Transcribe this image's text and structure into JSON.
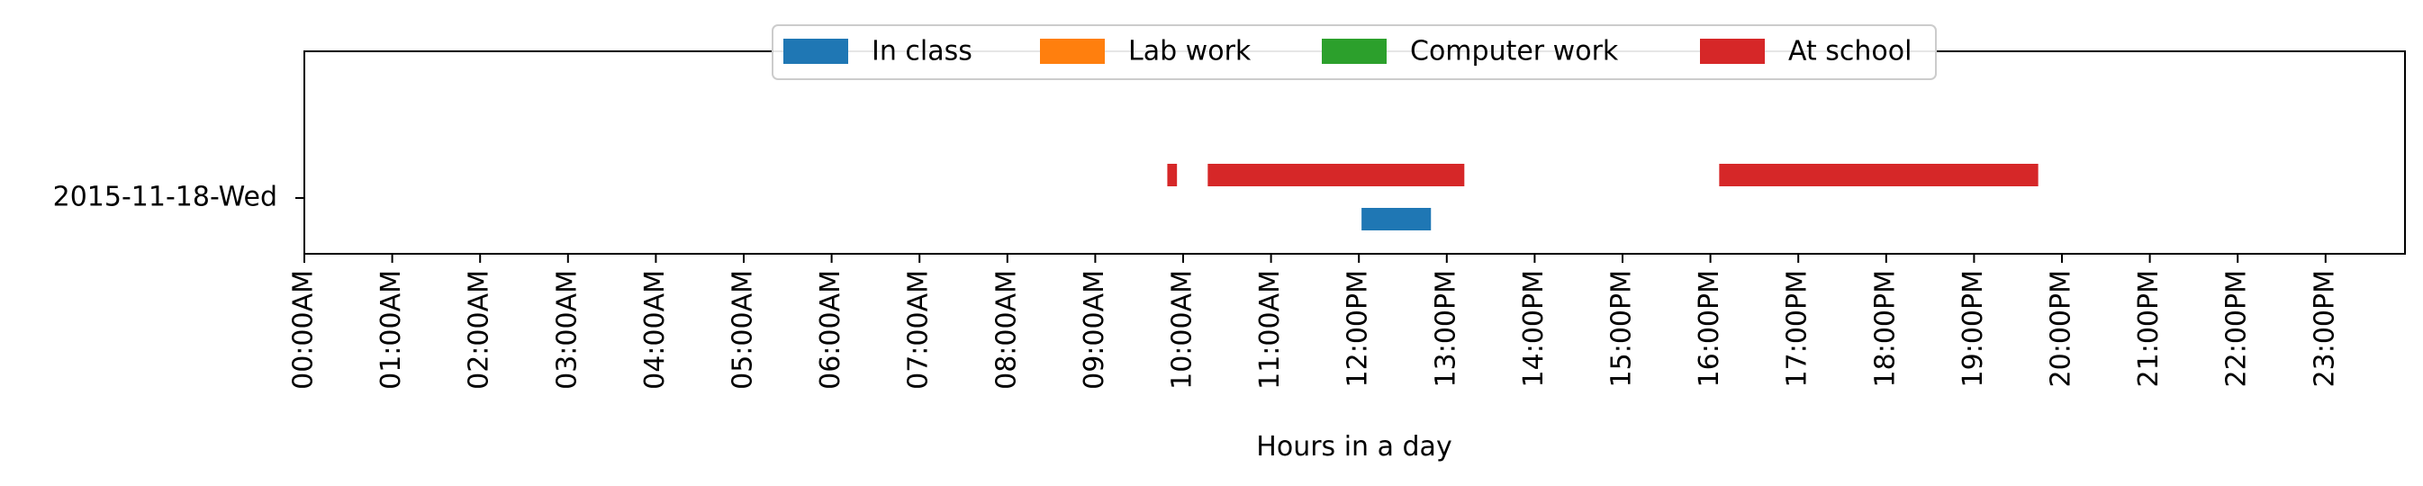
{
  "chart_data": {
    "type": "bar",
    "orientation": "horizontal-timeline",
    "xlabel": "Hours in a day",
    "ylabel": "",
    "xlim": [
      0,
      24
    ],
    "x_tick_labels": [
      "00:00AM",
      "01:00AM",
      "02:00AM",
      "03:00AM",
      "04:00AM",
      "05:00AM",
      "06:00AM",
      "07:00AM",
      "08:00AM",
      "09:00AM",
      "10:00AM",
      "11:00AM",
      "12:00PM",
      "13:00PM",
      "14:00PM",
      "15:00PM",
      "16:00PM",
      "17:00PM",
      "18:00PM",
      "19:00PM",
      "20:00PM",
      "21:00PM",
      "22:00PM",
      "23:00PM"
    ],
    "categories": [
      "2015-11-18-Wed"
    ],
    "legend": {
      "placement": "top-center",
      "entries": [
        {
          "name": "In class",
          "color": "#1f77b4"
        },
        {
          "name": "Lab work",
          "color": "#ff7f0e"
        },
        {
          "name": "Computer work",
          "color": "#2ca02c"
        },
        {
          "name": "At school",
          "color": "#d62728"
        }
      ]
    },
    "series": [
      {
        "name": "In class",
        "color": "#1f77b4",
        "intervals": [
          [
            12.03,
            12.82
          ]
        ]
      },
      {
        "name": "Lab work",
        "color": "#ff7f0e",
        "intervals": []
      },
      {
        "name": "Computer work",
        "color": "#2ca02c",
        "intervals": []
      },
      {
        "name": "At school",
        "color": "#d62728",
        "intervals": [
          [
            9.82,
            9.93
          ],
          [
            10.28,
            13.2
          ],
          [
            16.1,
            19.73
          ]
        ]
      }
    ],
    "grid": false
  }
}
